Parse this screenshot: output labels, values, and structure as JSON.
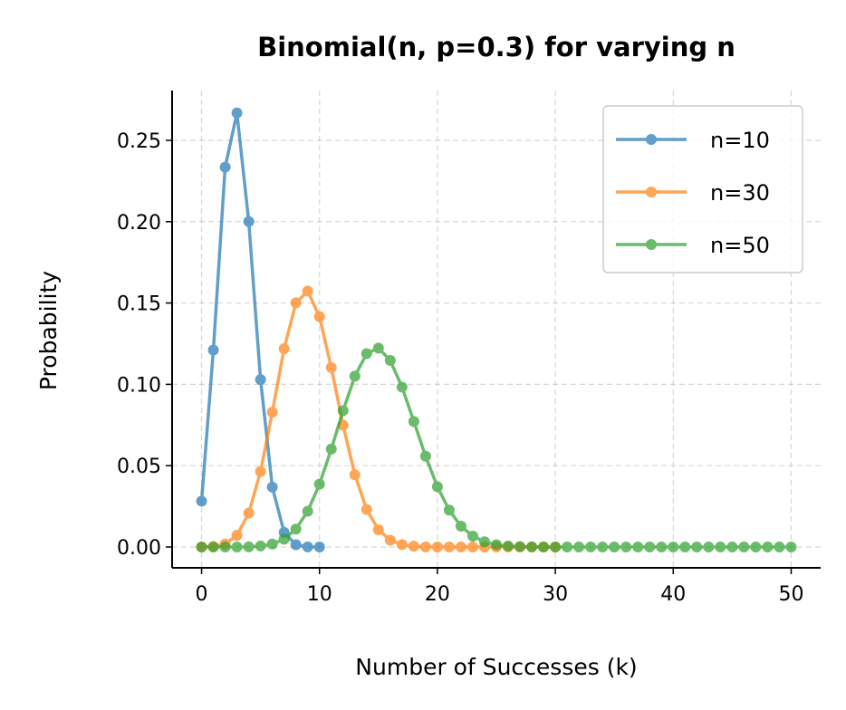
{
  "chart_data": {
    "type": "line",
    "title": "Binomial(n, p=0.3) for varying n",
    "xlabel": "Number of Successes (k)",
    "ylabel": "Probability",
    "xlim": [
      -2.5,
      52.5
    ],
    "ylim": [
      -0.0128,
      0.2806
    ],
    "xticks": [
      0,
      10,
      20,
      30,
      40,
      50
    ],
    "yticks": [
      0.0,
      0.05,
      0.1,
      0.15,
      0.2,
      0.25
    ],
    "ytick_labels": [
      "0.00",
      "0.05",
      "0.10",
      "0.15",
      "0.20",
      "0.25"
    ],
    "grid": true,
    "legend_position": "top-right",
    "series": [
      {
        "name": "n=10",
        "color": "#1f77b4",
        "x": [
          0,
          1,
          2,
          3,
          4,
          5,
          6,
          7,
          8,
          9,
          10
        ],
        "values": [
          0.0282,
          0.1211,
          0.2335,
          0.2668,
          0.2001,
          0.1029,
          0.0368,
          0.009,
          0.0014,
          0.0001,
          0.0
        ]
      },
      {
        "name": "n=30",
        "color": "#ff7f0e",
        "x": [
          0,
          1,
          2,
          3,
          4,
          5,
          6,
          7,
          8,
          9,
          10,
          11,
          12,
          13,
          14,
          15,
          16,
          17,
          18,
          19,
          20,
          21,
          22,
          23,
          24,
          25,
          26,
          27,
          28,
          29,
          30
        ],
        "values": [
          0.0,
          0.0003,
          0.0018,
          0.0072,
          0.0208,
          0.0464,
          0.0829,
          0.1219,
          0.1501,
          0.1573,
          0.1416,
          0.1103,
          0.0749,
          0.0444,
          0.0231,
          0.0106,
          0.0042,
          0.0015,
          0.0005,
          0.0001,
          0,
          0,
          0,
          0,
          0,
          0,
          0,
          0,
          0,
          0,
          0
        ]
      },
      {
        "name": "n=50",
        "color": "#2ca02c",
        "x": [
          0,
          1,
          2,
          3,
          4,
          5,
          6,
          7,
          8,
          9,
          10,
          11,
          12,
          13,
          14,
          15,
          16,
          17,
          18,
          19,
          20,
          21,
          22,
          23,
          24,
          25,
          26,
          27,
          28,
          29,
          30,
          31,
          32,
          33,
          34,
          35,
          36,
          37,
          38,
          39,
          40,
          41,
          42,
          43,
          44,
          45,
          46,
          47,
          48,
          49,
          50
        ],
        "values": [
          0,
          0,
          0,
          0,
          0.0001,
          0.0006,
          0.0018,
          0.0048,
          0.011,
          0.022,
          0.0386,
          0.0602,
          0.0838,
          0.105,
          0.1189,
          0.1223,
          0.1147,
          0.0983,
          0.0772,
          0.0558,
          0.037,
          0.0227,
          0.0128,
          0.0067,
          0.0032,
          0.0014,
          0.0006,
          0.0002,
          0.0001,
          0,
          0,
          0,
          0,
          0,
          0,
          0,
          0,
          0,
          0,
          0,
          0,
          0,
          0,
          0,
          0,
          0,
          0,
          0,
          0,
          0,
          0
        ]
      }
    ]
  }
}
